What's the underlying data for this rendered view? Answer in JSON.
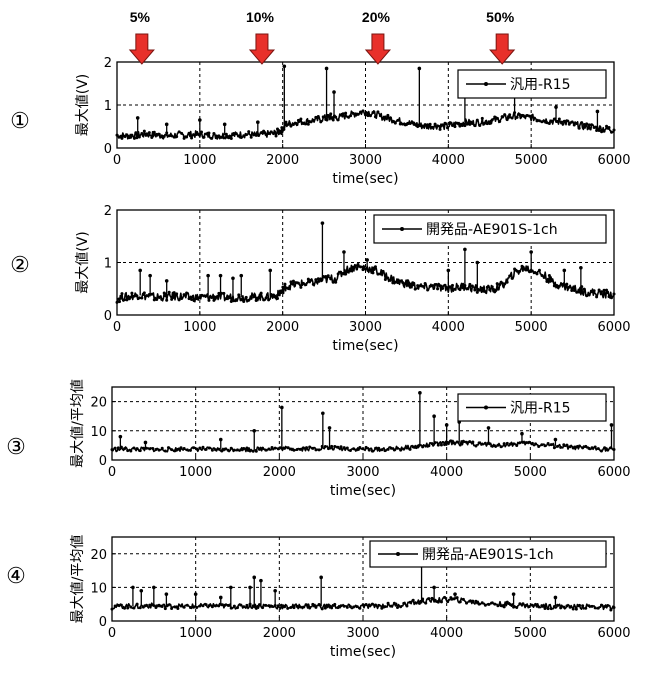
{
  "chart_data": [
    {
      "type": "line",
      "panel_marker": "①",
      "xlabel": "time(sec)",
      "ylabel": "最大値(V)",
      "xlim": [
        0,
        6000
      ],
      "ylim": [
        0,
        2
      ],
      "xticks": [
        "0",
        "1000",
        "2000",
        "3000",
        "4000",
        "5000",
        "6000"
      ],
      "yticks": [
        "0",
        "1",
        "2"
      ],
      "ytick_values": [
        0,
        1,
        2
      ],
      "grid": true,
      "legend_position": "top-right",
      "series": [
        {
          "name": "汎用-R15",
          "color": "#000000",
          "x": [
            0,
            120,
            240,
            360,
            480,
            600,
            720,
            840,
            960,
            1080,
            1200,
            1320,
            1440,
            1560,
            1680,
            1800,
            1920,
            1990,
            2040,
            2160,
            2280,
            2400,
            2520,
            2580,
            2640,
            2760,
            2880,
            3000,
            3120,
            3240,
            3360,
            3480,
            3600,
            3720,
            3840,
            3960,
            4080,
            4200,
            4320,
            4440,
            4560,
            4680,
            4800,
            4920,
            5040,
            5160,
            5280,
            5400,
            5520,
            5640,
            5760,
            5880,
            6000
          ],
          "y": [
            0.3,
            0.28,
            0.3,
            0.32,
            0.3,
            0.28,
            0.3,
            0.3,
            0.32,
            0.3,
            0.28,
            0.3,
            0.3,
            0.32,
            0.3,
            0.32,
            0.35,
            0.4,
            0.55,
            0.6,
            0.62,
            0.65,
            0.7,
            0.72,
            0.7,
            0.75,
            0.8,
            0.85,
            0.78,
            0.7,
            0.65,
            0.6,
            0.55,
            0.5,
            0.52,
            0.5,
            0.55,
            0.6,
            0.58,
            0.62,
            0.65,
            0.7,
            0.75,
            0.72,
            0.7,
            0.65,
            0.62,
            0.6,
            0.55,
            0.5,
            0.48,
            0.45,
            0.42
          ]
        }
      ],
      "spikes": [
        {
          "x": 250,
          "y": 0.7
        },
        {
          "x": 600,
          "y": 0.55
        },
        {
          "x": 1000,
          "y": 0.65
        },
        {
          "x": 1300,
          "y": 0.55
        },
        {
          "x": 1700,
          "y": 0.6
        },
        {
          "x": 2020,
          "y": 1.9
        },
        {
          "x": 2530,
          "y": 1.85
        },
        {
          "x": 2620,
          "y": 1.3
        },
        {
          "x": 3650,
          "y": 1.85
        },
        {
          "x": 4200,
          "y": 1.3
        },
        {
          "x": 4800,
          "y": 1.2
        },
        {
          "x": 5300,
          "y": 0.95
        },
        {
          "x": 5800,
          "y": 0.85
        }
      ],
      "annotations": [
        {
          "label": "5%",
          "x": 300
        },
        {
          "label": "10%",
          "x": 1750
        },
        {
          "label": "20%",
          "x": 3150
        },
        {
          "label": "50%",
          "x": 4650
        }
      ]
    },
    {
      "type": "line",
      "panel_marker": "②",
      "xlabel": "time(sec)",
      "ylabel": "最大値(V)",
      "xlim": [
        0,
        6000
      ],
      "ylim": [
        0,
        2
      ],
      "xticks": [
        "0",
        "1000",
        "2000",
        "3000",
        "4000",
        "5000",
        "6000"
      ],
      "yticks": [
        "0",
        "1",
        "2"
      ],
      "ytick_values": [
        0,
        1,
        2
      ],
      "grid": true,
      "legend_position": "top-right",
      "series": [
        {
          "name": "開発品-AE901S-1ch",
          "color": "#000000",
          "x": [
            0,
            120,
            240,
            360,
            480,
            600,
            720,
            840,
            960,
            1080,
            1200,
            1320,
            1440,
            1560,
            1680,
            1800,
            1920,
            1990,
            2040,
            2160,
            2280,
            2400,
            2520,
            2640,
            2760,
            2880,
            3000,
            3120,
            3240,
            3360,
            3480,
            3600,
            3720,
            3840,
            3960,
            4080,
            4200,
            4320,
            4440,
            4560,
            4680,
            4800,
            4920,
            5040,
            5160,
            5280,
            5400,
            5520,
            5640,
            5760,
            5880,
            6000
          ],
          "y": [
            0.32,
            0.35,
            0.38,
            0.36,
            0.34,
            0.35,
            0.36,
            0.34,
            0.33,
            0.34,
            0.35,
            0.33,
            0.34,
            0.33,
            0.35,
            0.34,
            0.36,
            0.45,
            0.55,
            0.58,
            0.6,
            0.62,
            0.68,
            0.7,
            0.85,
            0.92,
            0.9,
            0.85,
            0.75,
            0.65,
            0.6,
            0.55,
            0.52,
            0.55,
            0.5,
            0.52,
            0.55,
            0.5,
            0.48,
            0.5,
            0.6,
            0.8,
            0.9,
            0.85,
            0.75,
            0.6,
            0.55,
            0.5,
            0.45,
            0.42,
            0.4,
            0.4
          ]
        }
      ],
      "spikes": [
        {
          "x": 280,
          "y": 0.85
        },
        {
          "x": 400,
          "y": 0.75
        },
        {
          "x": 600,
          "y": 0.65
        },
        {
          "x": 1100,
          "y": 0.75
        },
        {
          "x": 1250,
          "y": 0.75
        },
        {
          "x": 1400,
          "y": 0.7
        },
        {
          "x": 1500,
          "y": 0.75
        },
        {
          "x": 1850,
          "y": 0.85
        },
        {
          "x": 2480,
          "y": 1.75
        },
        {
          "x": 2740,
          "y": 1.2
        },
        {
          "x": 3020,
          "y": 1.05
        },
        {
          "x": 4000,
          "y": 0.85
        },
        {
          "x": 4200,
          "y": 1.25
        },
        {
          "x": 4350,
          "y": 1.0
        },
        {
          "x": 5000,
          "y": 1.2
        },
        {
          "x": 5400,
          "y": 0.85
        },
        {
          "x": 5600,
          "y": 0.9
        }
      ]
    },
    {
      "type": "line",
      "panel_marker": "③",
      "xlabel": "time(sec)",
      "ylabel": "最大値/平均値",
      "xlim": [
        0,
        6000
      ],
      "ylim": [
        0,
        25
      ],
      "xticks": [
        "0",
        "1000",
        "2000",
        "3000",
        "4000",
        "5000",
        "6000"
      ],
      "yticks": [
        "0",
        "10",
        "20"
      ],
      "ytick_values": [
        0,
        10,
        20
      ],
      "grid": true,
      "legend_position": "top-right",
      "series": [
        {
          "name": "汎用-R15",
          "color": "#000000",
          "x": [
            0,
            150,
            300,
            450,
            600,
            750,
            900,
            1050,
            1200,
            1350,
            1500,
            1650,
            1800,
            1950,
            2100,
            2250,
            2400,
            2550,
            2700,
            2850,
            3000,
            3150,
            3300,
            3450,
            3600,
            3750,
            3900,
            4050,
            4200,
            4350,
            4500,
            4650,
            4800,
            4950,
            5100,
            5250,
            5400,
            5550,
            5700,
            5850,
            6000
          ],
          "y": [
            3.5,
            3.8,
            3.6,
            3.7,
            3.5,
            3.6,
            3.8,
            3.7,
            3.6,
            3.5,
            3.7,
            3.6,
            3.8,
            3.9,
            4.0,
            3.8,
            3.9,
            4.2,
            4.0,
            3.8,
            3.7,
            3.6,
            3.8,
            4.0,
            4.5,
            5.0,
            5.5,
            6.0,
            5.8,
            5.5,
            5.2,
            5.0,
            5.5,
            5.8,
            5.2,
            5.0,
            4.5,
            4.2,
            4.0,
            3.8,
            3.6
          ]
        }
      ],
      "spikes": [
        {
          "x": 100,
          "y": 8
        },
        {
          "x": 400,
          "y": 6
        },
        {
          "x": 1300,
          "y": 7
        },
        {
          "x": 1700,
          "y": 10
        },
        {
          "x": 2030,
          "y": 18
        },
        {
          "x": 2520,
          "y": 16
        },
        {
          "x": 2600,
          "y": 11
        },
        {
          "x": 3680,
          "y": 23
        },
        {
          "x": 3850,
          "y": 15
        },
        {
          "x": 4000,
          "y": 12
        },
        {
          "x": 4150,
          "y": 13
        },
        {
          "x": 4500,
          "y": 11
        },
        {
          "x": 4900,
          "y": 9
        },
        {
          "x": 5300,
          "y": 7
        },
        {
          "x": 5970,
          "y": 12
        }
      ]
    },
    {
      "type": "line",
      "panel_marker": "④",
      "xlabel": "time(sec)",
      "ylabel": "最大値/平均値",
      "xlim": [
        0,
        6000
      ],
      "ylim": [
        0,
        25
      ],
      "xticks": [
        "0",
        "1000",
        "2000",
        "3000",
        "4000",
        "5000",
        "6000"
      ],
      "yticks": [
        "0",
        "10",
        "20"
      ],
      "ytick_values": [
        0,
        10,
        20
      ],
      "grid": true,
      "legend_position": "top-right",
      "series": [
        {
          "name": "開発品-AE901S-1ch",
          "color": "#000000",
          "x": [
            0,
            150,
            300,
            450,
            600,
            750,
            900,
            1050,
            1200,
            1350,
            1500,
            1650,
            1800,
            1950,
            2100,
            2250,
            2400,
            2550,
            2700,
            2850,
            3000,
            3150,
            3300,
            3450,
            3600,
            3750,
            3900,
            4050,
            4200,
            4350,
            4500,
            4650,
            4800,
            4950,
            5100,
            5250,
            5400,
            5550,
            5700,
            5850,
            6000
          ],
          "y": [
            4.2,
            4.5,
            4.3,
            4.6,
            4.4,
            4.5,
            4.3,
            4.4,
            4.6,
            4.5,
            4.3,
            4.4,
            4.5,
            4.3,
            4.2,
            4.4,
            4.5,
            4.3,
            4.4,
            4.2,
            4.3,
            4.4,
            4.6,
            4.8,
            5.5,
            6.0,
            6.2,
            6.5,
            6.0,
            5.5,
            5.2,
            5.0,
            4.8,
            4.6,
            4.5,
            4.4,
            4.3,
            4.2,
            4.3,
            4.1,
            4.0
          ]
        }
      ],
      "spikes": [
        {
          "x": 250,
          "y": 10
        },
        {
          "x": 350,
          "y": 9
        },
        {
          "x": 500,
          "y": 10
        },
        {
          "x": 650,
          "y": 8
        },
        {
          "x": 1000,
          "y": 8
        },
        {
          "x": 1300,
          "y": 7
        },
        {
          "x": 1420,
          "y": 10
        },
        {
          "x": 1650,
          "y": 10
        },
        {
          "x": 1700,
          "y": 13
        },
        {
          "x": 1780,
          "y": 12
        },
        {
          "x": 1950,
          "y": 9
        },
        {
          "x": 2500,
          "y": 13
        },
        {
          "x": 3700,
          "y": 18
        },
        {
          "x": 3850,
          "y": 10
        },
        {
          "x": 4100,
          "y": 8
        },
        {
          "x": 4800,
          "y": 8
        },
        {
          "x": 5300,
          "y": 7
        }
      ]
    }
  ]
}
